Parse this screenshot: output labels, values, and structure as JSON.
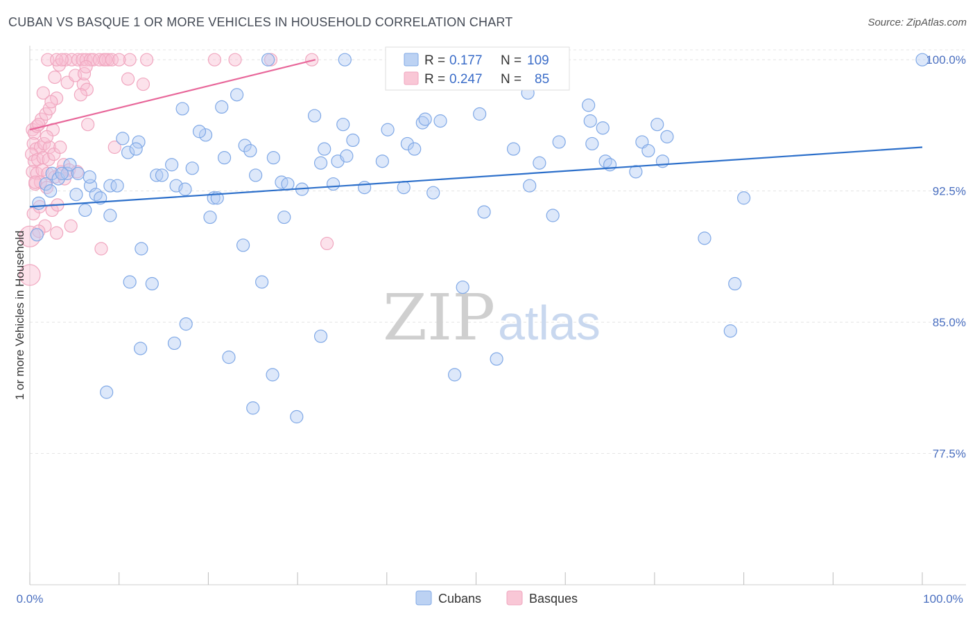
{
  "header": {
    "title": "CUBAN VS BASQUE 1 OR MORE VEHICLES IN HOUSEHOLD CORRELATION CHART",
    "source": "Source: ZipAtlas.com"
  },
  "watermark": {
    "zip": "ZIP",
    "atlas": "atlas"
  },
  "legend": {
    "rows": [
      {
        "r_label": "R =",
        "r_value": "0.177",
        "n_label": "N =",
        "n_value": "109"
      },
      {
        "r_label": "R =",
        "r_value": "0.247",
        "n_label": "N =",
        "n_value": "85"
      }
    ]
  },
  "chart_data": {
    "type": "scatter",
    "title": "CUBAN VS BASQUE 1 OR MORE VEHICLES IN HOUSEHOLD CORRELATION CHART",
    "ylabel": "1 or more Vehicles in Household",
    "xlabel": "",
    "xlim": [
      0,
      100
    ],
    "ylim": [
      70.0,
      100.8
    ],
    "x_ticks_labels": [
      "0.0%",
      "100.0%"
    ],
    "y_ticks": [
      77.5,
      85.0,
      92.5,
      100.0
    ],
    "y_tick_labels": [
      "77.5%",
      "85.0%",
      "92.5%",
      "100.0%"
    ],
    "grid": true,
    "legend_position": "top-center",
    "series": [
      {
        "name": "Cubans",
        "color": "#7fa8e6",
        "line_color": "#2c6fca",
        "trend": {
          "x": [
            0,
            100
          ],
          "y": [
            91.6,
            95.0
          ]
        },
        "points": [
          [
            1.0,
            91.8
          ],
          [
            0.8,
            90.0
          ],
          [
            1.8,
            92.9
          ],
          [
            2.5,
            93.5
          ],
          [
            3.2,
            93.2
          ],
          [
            2.3,
            92.5
          ],
          [
            4.2,
            93.5
          ],
          [
            4.5,
            94.0
          ],
          [
            5.4,
            93.5
          ],
          [
            3.6,
            93.5
          ],
          [
            5.2,
            92.3
          ],
          [
            6.8,
            92.8
          ],
          [
            7.4,
            92.3
          ],
          [
            7.9,
            92.1
          ],
          [
            9.0,
            92.8
          ],
          [
            9.8,
            92.8
          ],
          [
            11.0,
            94.7
          ],
          [
            12.2,
            95.3
          ],
          [
            11.9,
            94.9
          ],
          [
            10.4,
            95.5
          ],
          [
            14.2,
            93.4
          ],
          [
            14.8,
            93.4
          ],
          [
            15.9,
            94.0
          ],
          [
            16.4,
            92.8
          ],
          [
            17.1,
            97.2
          ],
          [
            17.4,
            92.6
          ],
          [
            18.2,
            93.8
          ],
          [
            19.7,
            95.7
          ],
          [
            20.6,
            92.1
          ],
          [
            20.2,
            91.0
          ],
          [
            21.5,
            97.3
          ],
          [
            21.8,
            94.4
          ],
          [
            23.2,
            98.0
          ],
          [
            24.1,
            95.1
          ],
          [
            24.7,
            94.8
          ],
          [
            25.3,
            93.4
          ],
          [
            27.3,
            94.4
          ],
          [
            28.2,
            93.0
          ],
          [
            28.9,
            92.9
          ],
          [
            30.5,
            92.6
          ],
          [
            31.9,
            96.8
          ],
          [
            32.6,
            94.1
          ],
          [
            33.0,
            94.9
          ],
          [
            34.0,
            92.9
          ],
          [
            34.5,
            94.2
          ],
          [
            35.1,
            96.3
          ],
          [
            35.5,
            94.5
          ],
          [
            36.2,
            95.4
          ],
          [
            37.5,
            92.7
          ],
          [
            35.3,
            100.0
          ],
          [
            26.7,
            100.0
          ],
          [
            39.5,
            94.2
          ],
          [
            41.9,
            92.7
          ],
          [
            42.3,
            95.2
          ],
          [
            43.1,
            94.9
          ],
          [
            44.0,
            96.4
          ],
          [
            44.3,
            96.6
          ],
          [
            45.2,
            92.4
          ],
          [
            46.0,
            96.5
          ],
          [
            50.4,
            96.9
          ],
          [
            50.9,
            91.3
          ],
          [
            53.6,
            99.3
          ],
          [
            54.2,
            94.9
          ],
          [
            55.8,
            98.1
          ],
          [
            56.0,
            92.8
          ],
          [
            59.3,
            95.3
          ],
          [
            63.0,
            95.2
          ],
          [
            62.6,
            97.4
          ],
          [
            62.8,
            96.5
          ],
          [
            64.2,
            96.1
          ],
          [
            64.5,
            94.2
          ],
          [
            65.0,
            94.0
          ],
          [
            67.9,
            93.6
          ],
          [
            68.6,
            95.3
          ],
          [
            69.3,
            94.8
          ],
          [
            70.3,
            96.3
          ],
          [
            70.9,
            94.2
          ],
          [
            71.4,
            95.6
          ],
          [
            100.0,
            100.0
          ],
          [
            6.7,
            93.3
          ],
          [
            9.0,
            91.1
          ],
          [
            12.5,
            89.2
          ],
          [
            11.2,
            87.3
          ],
          [
            13.7,
            87.2
          ],
          [
            21.0,
            92.1
          ],
          [
            23.9,
            89.4
          ],
          [
            26.0,
            87.3
          ],
          [
            28.5,
            91.0
          ],
          [
            17.5,
            84.9
          ],
          [
            12.4,
            83.5
          ],
          [
            16.2,
            83.8
          ],
          [
            22.3,
            83.0
          ],
          [
            25.0,
            80.1
          ],
          [
            27.2,
            82.0
          ],
          [
            29.9,
            79.6
          ],
          [
            32.6,
            84.2
          ],
          [
            47.6,
            82.0
          ],
          [
            52.3,
            82.9
          ],
          [
            48.5,
            87.0
          ],
          [
            58.6,
            91.1
          ],
          [
            75.6,
            89.8
          ],
          [
            79.0,
            87.2
          ],
          [
            80.0,
            92.1
          ],
          [
            78.5,
            84.5
          ],
          [
            8.6,
            81.0
          ],
          [
            6.2,
            91.4
          ],
          [
            19.0,
            95.9
          ],
          [
            40.1,
            96.0
          ],
          [
            57.1,
            94.1
          ]
        ]
      },
      {
        "name": "Basques",
        "color": "#f0a6bf",
        "line_color": "#e8679a",
        "trend": {
          "x": [
            0,
            32
          ],
          "y": [
            96.0,
            100.0
          ]
        },
        "points": [
          [
            0.3,
            96.0
          ],
          [
            0.5,
            95.8
          ],
          [
            0.8,
            96.2
          ],
          [
            1.3,
            96.6
          ],
          [
            1.8,
            96.9
          ],
          [
            1.0,
            96.3
          ],
          [
            0.4,
            95.2
          ],
          [
            0.7,
            94.9
          ],
          [
            1.2,
            95.0
          ],
          [
            1.6,
            95.2
          ],
          [
            2.2,
            95.0
          ],
          [
            0.2,
            94.6
          ],
          [
            0.5,
            94.2
          ],
          [
            0.9,
            94.3
          ],
          [
            1.5,
            94.4
          ],
          [
            2.1,
            94.3
          ],
          [
            0.3,
            93.6
          ],
          [
            0.8,
            93.5
          ],
          [
            1.4,
            93.7
          ],
          [
            2.0,
            93.5
          ],
          [
            3.5,
            93.6
          ],
          [
            0.6,
            92.9
          ],
          [
            1.2,
            93.0
          ],
          [
            2.8,
            93.3
          ],
          [
            1.9,
            92.7
          ],
          [
            0.4,
            91.2
          ],
          [
            1.1,
            91.6
          ],
          [
            2.5,
            91.4
          ],
          [
            3.1,
            91.7
          ],
          [
            0.0,
            89.9
          ],
          [
            0.0,
            87.7
          ],
          [
            1.7,
            90.5
          ],
          [
            3.0,
            90.1
          ],
          [
            4.6,
            90.5
          ],
          [
            8.0,
            89.2
          ],
          [
            33.3,
            89.5
          ],
          [
            2.2,
            97.2
          ],
          [
            3.0,
            97.8
          ],
          [
            1.5,
            98.1
          ],
          [
            2.8,
            99.0
          ],
          [
            3.3,
            99.7
          ],
          [
            4.2,
            98.7
          ],
          [
            5.1,
            99.1
          ],
          [
            6.0,
            98.6
          ],
          [
            6.1,
            99.2
          ],
          [
            6.4,
            98.3
          ],
          [
            5.7,
            98.0
          ],
          [
            4.0,
            100.0
          ],
          [
            4.7,
            100.0
          ],
          [
            5.4,
            100.0
          ],
          [
            5.9,
            100.0
          ],
          [
            6.3,
            100.0
          ],
          [
            6.8,
            100.0
          ],
          [
            7.1,
            100.0
          ],
          [
            2.0,
            100.0
          ],
          [
            3.0,
            100.0
          ],
          [
            3.6,
            100.0
          ],
          [
            8.3,
            100.0
          ],
          [
            8.8,
            100.0
          ],
          [
            11.2,
            100.0
          ],
          [
            13.1,
            100.0
          ],
          [
            20.7,
            100.0
          ],
          [
            23.0,
            100.0
          ],
          [
            31.6,
            100.0
          ],
          [
            27.0,
            100.0
          ],
          [
            6.3,
            99.6
          ],
          [
            11.0,
            98.9
          ],
          [
            12.7,
            98.6
          ],
          [
            6.5,
            96.3
          ],
          [
            9.5,
            95.0
          ],
          [
            3.8,
            94.0
          ],
          [
            4.4,
            93.7
          ],
          [
            2.6,
            96.0
          ],
          [
            1.9,
            95.6
          ],
          [
            2.7,
            94.6
          ],
          [
            3.4,
            95.0
          ],
          [
            0.6,
            93.0
          ],
          [
            5.3,
            93.6
          ],
          [
            7.8,
            100.0
          ],
          [
            8.5,
            100.0
          ],
          [
            9.2,
            100.0
          ],
          [
            10.0,
            100.0
          ],
          [
            3.9,
            93.2
          ],
          [
            1.0,
            90.2
          ],
          [
            2.4,
            97.6
          ]
        ]
      }
    ]
  }
}
